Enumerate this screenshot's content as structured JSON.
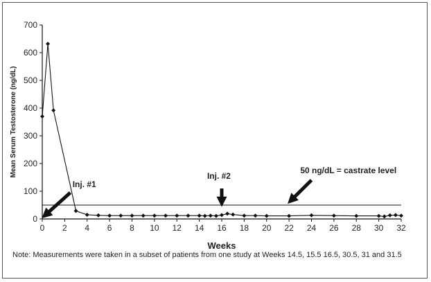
{
  "chart_data": {
    "type": "line",
    "title": "",
    "xlabel": "Weeks",
    "ylabel": "Mean Serum Testosterone (ng/dL)",
    "xlim": [
      0,
      32
    ],
    "ylim": [
      0,
      700
    ],
    "xticks": [
      0,
      2,
      4,
      6,
      8,
      10,
      12,
      14,
      16,
      18,
      20,
      22,
      24,
      26,
      28,
      30,
      32
    ],
    "yticks": [
      0,
      100,
      200,
      300,
      400,
      500,
      600,
      700
    ],
    "grid": false,
    "series": [
      {
        "x": [
          0,
          0.5,
          1,
          3,
          4,
          5,
          6,
          7,
          8,
          9,
          10,
          11,
          12,
          13,
          14,
          14.5,
          15,
          15.5,
          16,
          16.5,
          17,
          18,
          19,
          20,
          22,
          24,
          26,
          28,
          30,
          30.5,
          31,
          31.5,
          32
        ],
        "y": [
          370,
          632,
          392,
          29,
          15,
          13,
          12,
          12,
          12,
          12,
          12,
          12,
          12,
          12,
          12,
          11,
          12,
          11,
          14,
          19,
          16,
          12,
          12,
          11,
          11,
          13,
          12,
          11,
          11,
          9,
          13,
          14,
          12
        ],
        "color": "#111111",
        "marker": "diamond"
      }
    ],
    "reference_lines": [
      {
        "y": 50,
        "color": "#111111"
      }
    ],
    "annotations": [
      {
        "text": "Inj. #1",
        "x": 2.7,
        "y": 115,
        "arrow_from": [
          2.5,
          95
        ],
        "arrow_to": [
          0.3,
          15
        ]
      },
      {
        "text": "Inj. #2",
        "x": 14.7,
        "y": 145,
        "arrow_from": [
          16,
          110
        ],
        "arrow_to": [
          16,
          62
        ]
      },
      {
        "text": "50 ng/dL = castrate level",
        "x": 23,
        "y": 165,
        "arrow_from": [
          24,
          140
        ],
        "arrow_to": [
          22.2,
          68
        ]
      }
    ]
  },
  "note": "Note: Measurements were taken in a subset of patients from one study at Weeks 14.5, 15.5 16.5, 30.5, 31 and 31.5"
}
